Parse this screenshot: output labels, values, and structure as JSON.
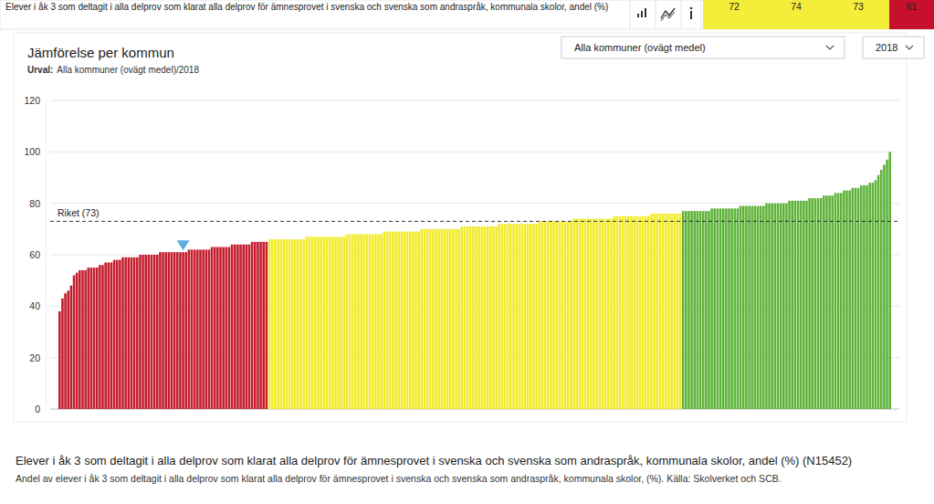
{
  "header": {
    "text": "Elever i åk 3 som deltagit i alla delprov som klarat alla delprov för ämnesprovet i svenska och svenska som andraspråk, kommunala skolor, andel (%)",
    "values": [
      72,
      74,
      73,
      61
    ],
    "colors": [
      "#f4ee3a",
      "#f4ee3a",
      "#f4ee3a",
      "#c8102e"
    ]
  },
  "controls": {
    "selection": "Alla kommuner (ovägt medel)",
    "year": "2018"
  },
  "footer": {
    "title": "Elever i åk 3 som deltagit i alla delprov som klarat alla delprov för ämnesprovet i svenska och svenska som andraspråk, kommunala skolor, andel (%) (N15452)",
    "note": "Andel av elever i åk 3 som deltagit i alla delprov som klarat alla delprov för ämnesprovet i svenska och svenska som andraspråk, kommunala skolor, (%). Källa: Skolverket och SCB."
  },
  "chart_data": {
    "type": "bar",
    "title": "Jämförelse per kommun",
    "subtitle_label": "Urval:",
    "subtitle": "Alla kommuner (ovägt medel)/2018",
    "categories": [
      null,
      null,
      null,
      null,
      null,
      null,
      null,
      null,
      null,
      null,
      null,
      null,
      null,
      null,
      null,
      null,
      null,
      null,
      null,
      null,
      null,
      null,
      null,
      null,
      null,
      null,
      null,
      null,
      null,
      null,
      null,
      null,
      null,
      null,
      null,
      null,
      null,
      null,
      null,
      null,
      null,
      null,
      null,
      null,
      null,
      null,
      null,
      null,
      null,
      null,
      null,
      null,
      null,
      null,
      null,
      null,
      null,
      null,
      null,
      null,
      null,
      null,
      null,
      null,
      null,
      null,
      null,
      null,
      null,
      null,
      null,
      null,
      null,
      null,
      null,
      null,
      null,
      null,
      null,
      null,
      null,
      null,
      null,
      null,
      null,
      null,
      null,
      null,
      null,
      null,
      null,
      null,
      null,
      null,
      null,
      null,
      null,
      null,
      null,
      null,
      null,
      null,
      null,
      null,
      null,
      null,
      null,
      null,
      null,
      null,
      null,
      null,
      null,
      null,
      null,
      null,
      null,
      null,
      null,
      null,
      null,
      null,
      null,
      null,
      null,
      null,
      null,
      null,
      null,
      null,
      null,
      null,
      null,
      null,
      null,
      null,
      null,
      null,
      null,
      null,
      null,
      null,
      null,
      null,
      null,
      null,
      null,
      null,
      null,
      null,
      null,
      null,
      null,
      null,
      null,
      null,
      null,
      null,
      null,
      null,
      null,
      null,
      null,
      null,
      null,
      null,
      null,
      null,
      null,
      null,
      null,
      null,
      null,
      null,
      null,
      null,
      null,
      null,
      null,
      null,
      null,
      null,
      null,
      null,
      null,
      null,
      null,
      null,
      null,
      null,
      null,
      null,
      null,
      null,
      null,
      null,
      null,
      null,
      null,
      null,
      null,
      null,
      null,
      null,
      null,
      null,
      null,
      null,
      null,
      null,
      null,
      null,
      null,
      null,
      null,
      null,
      null,
      null,
      null,
      null,
      null,
      null,
      null,
      null,
      null,
      null,
      null,
      null,
      null,
      null,
      null,
      null,
      null,
      null,
      null,
      null,
      null,
      null,
      null,
      null,
      null,
      null,
      null,
      null,
      null,
      null,
      null,
      null,
      null,
      null,
      null,
      null,
      null,
      null,
      null,
      null,
      null,
      null,
      null,
      null,
      null,
      null,
      null,
      null,
      null,
      null,
      null,
      null,
      null,
      null,
      null,
      null,
      null,
      null,
      null,
      null,
      null,
      null,
      null,
      null,
      null,
      null,
      null,
      null,
      null,
      null,
      null,
      null,
      null,
      null
    ],
    "values": [
      38,
      43,
      45,
      46,
      48,
      52,
      53,
      54,
      54,
      54,
      55,
      55,
      55,
      55,
      56,
      56,
      57,
      57,
      57,
      58,
      58,
      58,
      59,
      59,
      59,
      59,
      59,
      59,
      60,
      60,
      60,
      60,
      60,
      60,
      60,
      61,
      61,
      61,
      61,
      61,
      61,
      61,
      61,
      61,
      61,
      62,
      62,
      62,
      62,
      62,
      62,
      62,
      62,
      63,
      63,
      63,
      63,
      63,
      63,
      63,
      64,
      64,
      64,
      64,
      64,
      64,
      64,
      65,
      65,
      65,
      65,
      65,
      65,
      66,
      66,
      66,
      66,
      66,
      66,
      66,
      66,
      66,
      66,
      66,
      66,
      66,
      67,
      67,
      67,
      67,
      67,
      67,
      67,
      67,
      67,
      67,
      67,
      67,
      67,
      67,
      68,
      68,
      68,
      68,
      68,
      68,
      68,
      68,
      68,
      68,
      68,
      68,
      68,
      69,
      69,
      69,
      69,
      69,
      69,
      69,
      69,
      69,
      69,
      69,
      69,
      69,
      70,
      70,
      70,
      70,
      70,
      70,
      70,
      70,
      70,
      70,
      70,
      70,
      70,
      70,
      71,
      71,
      71,
      71,
      71,
      71,
      71,
      71,
      71,
      71,
      71,
      71,
      71,
      72,
      72,
      72,
      72,
      72,
      72,
      72,
      72,
      72,
      72,
      72,
      72,
      72,
      72,
      73,
      73,
      73,
      73,
      73,
      73,
      73,
      73,
      73,
      73,
      73,
      73,
      74,
      74,
      74,
      74,
      74,
      74,
      74,
      74,
      74,
      74,
      74,
      74,
      74,
      74,
      75,
      75,
      75,
      75,
      75,
      75,
      75,
      75,
      75,
      75,
      75,
      75,
      75,
      76,
      76,
      76,
      76,
      76,
      76,
      76,
      76,
      76,
      76,
      76,
      77,
      77,
      77,
      77,
      77,
      77,
      77,
      77,
      77,
      77,
      78,
      78,
      78,
      78,
      78,
      78,
      78,
      78,
      78,
      78,
      79,
      79,
      79,
      79,
      79,
      79,
      79,
      79,
      79,
      80,
      80,
      80,
      80,
      80,
      80,
      80,
      80,
      81,
      81,
      81,
      81,
      81,
      81,
      81,
      82,
      82,
      82,
      82,
      82,
      83,
      83,
      83,
      83,
      84,
      84,
      84,
      85,
      85,
      85,
      86,
      86,
      86,
      87,
      87,
      87,
      88,
      88,
      89,
      91,
      93,
      95,
      97,
      100
    ],
    "colors": [
      "#c41e2e",
      "#c41e2e",
      "#c41e2e",
      "#c41e2e",
      "#c41e2e",
      "#c41e2e",
      "#c41e2e",
      "#c41e2e",
      "#c41e2e",
      "#c41e2e",
      "#c41e2e",
      "#c41e2e",
      "#c41e2e",
      "#c41e2e",
      "#c41e2e",
      "#c41e2e",
      "#c41e2e",
      "#c41e2e",
      "#c41e2e",
      "#c41e2e",
      "#c41e2e",
      "#c41e2e",
      "#c41e2e",
      "#c41e2e",
      "#c41e2e",
      "#c41e2e",
      "#c41e2e",
      "#c41e2e",
      "#c41e2e",
      "#c41e2e",
      "#c41e2e",
      "#c41e2e",
      "#c41e2e",
      "#c41e2e",
      "#c41e2e",
      "#c41e2e",
      "#c41e2e",
      "#c41e2e",
      "#c41e2e",
      "#c41e2e",
      "#c41e2e",
      "#c41e2e",
      "#c41e2e",
      "#c41e2e",
      "#c41e2e",
      "#c41e2e",
      "#c41e2e",
      "#c41e2e",
      "#c41e2e",
      "#c41e2e",
      "#c41e2e",
      "#c41e2e",
      "#c41e2e",
      "#c41e2e",
      "#c41e2e",
      "#c41e2e",
      "#c41e2e",
      "#c41e2e",
      "#c41e2e",
      "#c41e2e",
      "#c41e2e",
      "#c41e2e",
      "#c41e2e",
      "#c41e2e",
      "#c41e2e",
      "#c41e2e",
      "#c41e2e",
      "#c41e2e",
      "#c41e2e",
      "#c41e2e",
      "#c41e2e",
      "#c41e2e",
      "#c41e2e",
      "#f2ec2c",
      "#f2ec2c",
      "#f2ec2c",
      "#f2ec2c",
      "#f2ec2c",
      "#f2ec2c",
      "#f2ec2c",
      "#f2ec2c",
      "#f2ec2c",
      "#f2ec2c",
      "#f2ec2c",
      "#f2ec2c",
      "#f2ec2c",
      "#f2ec2c",
      "#f2ec2c",
      "#f2ec2c",
      "#f2ec2c",
      "#f2ec2c",
      "#f2ec2c",
      "#f2ec2c",
      "#f2ec2c",
      "#f2ec2c",
      "#f2ec2c",
      "#f2ec2c",
      "#f2ec2c",
      "#f2ec2c",
      "#f2ec2c",
      "#f2ec2c",
      "#f2ec2c",
      "#f2ec2c",
      "#f2ec2c",
      "#f2ec2c",
      "#f2ec2c",
      "#f2ec2c",
      "#f2ec2c",
      "#f2ec2c",
      "#f2ec2c",
      "#f2ec2c",
      "#f2ec2c",
      "#f2ec2c",
      "#f2ec2c",
      "#f2ec2c",
      "#f2ec2c",
      "#f2ec2c",
      "#f2ec2c",
      "#f2ec2c",
      "#f2ec2c",
      "#f2ec2c",
      "#f2ec2c",
      "#f2ec2c",
      "#f2ec2c",
      "#f2ec2c",
      "#f2ec2c",
      "#f2ec2c",
      "#f2ec2c",
      "#f2ec2c",
      "#f2ec2c",
      "#f2ec2c",
      "#f2ec2c",
      "#f2ec2c",
      "#f2ec2c",
      "#f2ec2c",
      "#f2ec2c",
      "#f2ec2c",
      "#f2ec2c",
      "#f2ec2c",
      "#f2ec2c",
      "#f2ec2c",
      "#f2ec2c",
      "#f2ec2c",
      "#f2ec2c",
      "#f2ec2c",
      "#f2ec2c",
      "#f2ec2c",
      "#f2ec2c",
      "#f2ec2c",
      "#f2ec2c",
      "#f2ec2c",
      "#f2ec2c",
      "#f2ec2c",
      "#f2ec2c",
      "#f2ec2c",
      "#f2ec2c",
      "#f2ec2c",
      "#f2ec2c",
      "#f2ec2c",
      "#f2ec2c",
      "#f2ec2c",
      "#f2ec2c",
      "#f2ec2c",
      "#f2ec2c",
      "#f2ec2c",
      "#f2ec2c",
      "#f2ec2c",
      "#f2ec2c",
      "#f2ec2c",
      "#f2ec2c",
      "#f2ec2c",
      "#f2ec2c",
      "#f2ec2c",
      "#f2ec2c",
      "#f2ec2c",
      "#f2ec2c",
      "#f2ec2c",
      "#f2ec2c",
      "#f2ec2c",
      "#f2ec2c",
      "#f2ec2c",
      "#f2ec2c",
      "#f2ec2c",
      "#f2ec2c",
      "#f2ec2c",
      "#f2ec2c",
      "#f2ec2c",
      "#f2ec2c",
      "#f2ec2c",
      "#f2ec2c",
      "#f2ec2c",
      "#f2ec2c",
      "#f2ec2c",
      "#f2ec2c",
      "#f2ec2c",
      "#f2ec2c",
      "#f2ec2c",
      "#f2ec2c",
      "#f2ec2c",
      "#f2ec2c",
      "#f2ec2c",
      "#f2ec2c",
      "#f2ec2c",
      "#f2ec2c",
      "#f2ec2c",
      "#f2ec2c",
      "#f2ec2c",
      "#f2ec2c",
      "#f2ec2c",
      "#f2ec2c",
      "#f2ec2c",
      "#f2ec2c",
      "#f2ec2c",
      "#f2ec2c",
      "#f2ec2c",
      "#f2ec2c",
      "#f2ec2c",
      "#5fb33a",
      "#5fb33a",
      "#5fb33a",
      "#5fb33a",
      "#5fb33a",
      "#5fb33a",
      "#5fb33a",
      "#5fb33a",
      "#5fb33a",
      "#5fb33a",
      "#5fb33a",
      "#5fb33a",
      "#5fb33a",
      "#5fb33a",
      "#5fb33a",
      "#5fb33a",
      "#5fb33a",
      "#5fb33a",
      "#5fb33a",
      "#5fb33a",
      "#5fb33a",
      "#5fb33a",
      "#5fb33a",
      "#5fb33a",
      "#5fb33a",
      "#5fb33a",
      "#5fb33a",
      "#5fb33a",
      "#5fb33a",
      "#5fb33a",
      "#5fb33a",
      "#5fb33a",
      "#5fb33a",
      "#5fb33a",
      "#5fb33a",
      "#5fb33a",
      "#5fb33a",
      "#5fb33a",
      "#5fb33a",
      "#5fb33a",
      "#5fb33a",
      "#5fb33a",
      "#5fb33a",
      "#5fb33a",
      "#5fb33a",
      "#5fb33a",
      "#5fb33a",
      "#5fb33a",
      "#5fb33a",
      "#5fb33a",
      "#5fb33a",
      "#5fb33a",
      "#5fb33a",
      "#5fb33a",
      "#5fb33a",
      "#5fb33a",
      "#5fb33a",
      "#5fb33a",
      "#5fb33a",
      "#5fb33a",
      "#5fb33a",
      "#5fb33a",
      "#5fb33a",
      "#5fb33a",
      "#5fb33a",
      "#5fb33a",
      "#5fb33a",
      "#5fb33a",
      "#5fb33a",
      "#5fb33a",
      "#5fb33a",
      "#5fb33a",
      "#5fb33a"
    ],
    "ylim": [
      0,
      120
    ],
    "yticks": [
      0,
      20,
      40,
      60,
      80,
      100,
      120
    ],
    "grid": true,
    "tick_labels": "y",
    "reference_line": {
      "value": 73,
      "label": "Riket (73)"
    },
    "highlight": {
      "index": 43
    }
  }
}
